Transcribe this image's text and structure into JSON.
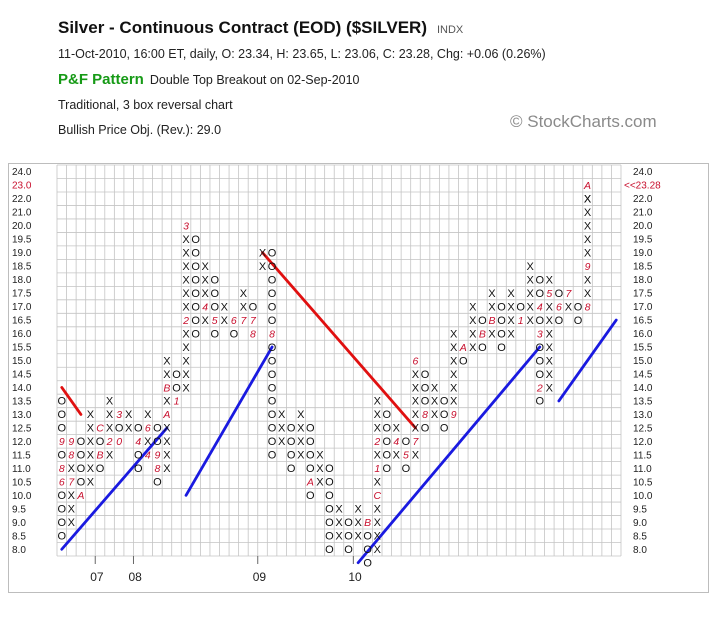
{
  "header": {
    "title": "Silver - Continuous Contract (EOD) ($SILVER)",
    "symbol_tag": "INDX",
    "quote_line": "11-Oct-2010, 16:00 ET, daily, O: 23.34, H: 23.65, L: 23.06, C: 23.28, Chg: +0.06 (0.26%)",
    "pattern_label": "P&F Pattern",
    "pattern_text": "Double Top Breakout on 02-Sep-2010",
    "method": "Traditional, 3 box reversal chart",
    "objective": "Bullish Price Obj. (Rev.): 29.0",
    "copyright": "© StockCharts.com"
  },
  "chart_data": {
    "type": "point-and-figure",
    "box_size": 0.5,
    "reversal": 3,
    "ylim": [
      8.0,
      24.0
    ],
    "y_ticks": [
      "24.0",
      "23.0",
      "22.0",
      "21.0",
      "20.0",
      "19.5",
      "19.0",
      "18.5",
      "18.0",
      "17.5",
      "17.0",
      "16.5",
      "16.0",
      "15.5",
      "15.0",
      "14.5",
      "14.0",
      "13.5",
      "13.0",
      "12.5",
      "12.0",
      "11.5",
      "11.0",
      "10.5",
      "10.0",
      "9.5",
      "9.0",
      "8.5",
      "8.0"
    ],
    "current_price_label": "23.0",
    "right_price_tag": "<<23.28",
    "x_labels": [
      {
        "column": 4,
        "label": "07"
      },
      {
        "column": 8,
        "label": "08"
      },
      {
        "column": 21,
        "label": "09"
      },
      {
        "column": 31,
        "label": "10"
      }
    ],
    "columns": [
      {
        "type": "O",
        "from": 14.5,
        "to": 9.5,
        "marks": {
          "11.5": "6",
          "12.0": "8",
          "13.0": "9"
        }
      },
      {
        "type": "X",
        "from": 10.0,
        "to": 13.0,
        "marks": {
          "11.5": "7",
          "12.5": "8",
          "13.0": "9"
        }
      },
      {
        "type": "O",
        "from": 13.0,
        "to": 11.0,
        "marks": {
          "11.0": "A"
        }
      },
      {
        "type": "X",
        "from": 11.5,
        "to": 14.0,
        "marks": {}
      },
      {
        "type": "O",
        "from": 13.5,
        "to": 12.0,
        "marks": {
          "13.5": "C",
          "12.5": "B"
        }
      },
      {
        "type": "X",
        "from": 12.5,
        "to": 14.5,
        "marks": {
          "13.0": "2"
        }
      },
      {
        "type": "O",
        "from": 14.0,
        "to": 13.0,
        "marks": {
          "13.0": "0",
          "14.0": "3"
        }
      },
      {
        "type": "X",
        "from": 13.5,
        "to": 14.0,
        "marks": {}
      },
      {
        "type": "O",
        "from": 13.5,
        "to": 12.0,
        "marks": {
          "13.0": "4"
        }
      },
      {
        "type": "X",
        "from": 12.5,
        "to": 14.0,
        "marks": {
          "12.5": "4",
          "13.5": "6"
        }
      },
      {
        "type": "O",
        "from": 13.5,
        "to": 11.5,
        "marks": {
          "12.0": "8",
          "12.5": "9"
        }
      },
      {
        "type": "X",
        "from": 12.0,
        "to": 16.0,
        "marks": {
          "14.0": "A",
          "15.0": "B"
        }
      },
      {
        "type": "O",
        "from": 15.5,
        "to": 14.5,
        "marks": {
          "14.5": "1"
        }
      },
      {
        "type": "X",
        "from": 15.0,
        "to": 21.0,
        "marks": {
          "17.5": "2",
          "21.0": "3"
        }
      },
      {
        "type": "O",
        "from": 20.5,
        "to": 17.0,
        "marks": {}
      },
      {
        "type": "X",
        "from": 17.5,
        "to": 19.5,
        "marks": {
          "18.0": "4"
        }
      },
      {
        "type": "O",
        "from": 19.0,
        "to": 17.0,
        "marks": {
          "17.5": "5"
        }
      },
      {
        "type": "X",
        "from": 17.5,
        "to": 18.0,
        "marks": {}
      },
      {
        "type": "O",
        "from": 17.5,
        "to": 17.0,
        "marks": {
          "17.5": "6"
        }
      },
      {
        "type": "X",
        "from": 17.5,
        "to": 18.5,
        "marks": {
          "17.5": "7"
        }
      },
      {
        "type": "O",
        "from": 18.0,
        "to": 17.0,
        "marks": {
          "17.5": "7",
          "17.0": "8"
        }
      },
      {
        "type": "X",
        "from": 19.5,
        "to": 20.0,
        "marks": {}
      },
      {
        "type": "O",
        "from": 20.0,
        "to": 12.5,
        "marks": {
          "17.0": "8"
        }
      },
      {
        "type": "X",
        "from": 13.0,
        "to": 14.0,
        "marks": {}
      },
      {
        "type": "O",
        "from": 13.5,
        "to": 12.0,
        "marks": {
          "14.0": "9"
        }
      },
      {
        "type": "X",
        "from": 12.5,
        "to": 14.0,
        "marks": {}
      },
      {
        "type": "O",
        "from": 13.5,
        "to": 11.0,
        "marks": {
          "11.5": "A"
        }
      },
      {
        "type": "X",
        "from": 11.5,
        "to": 12.5,
        "marks": {}
      },
      {
        "type": "O",
        "from": 12.0,
        "to": 9.0,
        "marks": {}
      },
      {
        "type": "X",
        "from": 9.5,
        "to": 10.5,
        "marks": {}
      },
      {
        "type": "O",
        "from": 10.0,
        "to": 9.0,
        "marks": {}
      },
      {
        "type": "X",
        "from": 9.5,
        "to": 10.5,
        "marks": {}
      },
      {
        "type": "O",
        "from": 10.0,
        "to": 8.5,
        "marks": {
          "10.0": "B"
        }
      },
      {
        "type": "X",
        "from": 9.0,
        "to": 14.5,
        "marks": {
          "11.0": "C",
          "12.0": "1",
          "13.0": "2"
        }
      },
      {
        "type": "O",
        "from": 14.0,
        "to": 12.0,
        "marks": {}
      },
      {
        "type": "X",
        "from": 12.5,
        "to": 13.5,
        "marks": {
          "13.0": "4"
        }
      },
      {
        "type": "O",
        "from": 13.0,
        "to": 12.0,
        "marks": {
          "12.5": "5"
        }
      },
      {
        "type": "X",
        "from": 12.5,
        "to": 16.0,
        "marks": {
          "13.0": "7",
          "16.0": "6"
        }
      },
      {
        "type": "O",
        "from": 15.5,
        "to": 13.5,
        "marks": {
          "14.0": "8"
        }
      },
      {
        "type": "X",
        "from": 14.0,
        "to": 15.0,
        "marks": {}
      },
      {
        "type": "O",
        "from": 14.5,
        "to": 13.5,
        "marks": {}
      },
      {
        "type": "X",
        "from": 14.0,
        "to": 17.0,
        "marks": {
          "14.0": "9"
        }
      },
      {
        "type": "O",
        "from": 16.5,
        "to": 16.0,
        "marks": {
          "16.5": "A"
        }
      },
      {
        "type": "X",
        "from": 16.5,
        "to": 18.0,
        "marks": {}
      },
      {
        "type": "O",
        "from": 17.5,
        "to": 16.5,
        "marks": {
          "17.0": "B"
        }
      },
      {
        "type": "X",
        "from": 17.0,
        "to": 18.5,
        "marks": {
          "17.5": "B"
        }
      },
      {
        "type": "O",
        "from": 18.0,
        "to": 16.5,
        "marks": {}
      },
      {
        "type": "X",
        "from": 17.0,
        "to": 18.5,
        "marks": {
          "19.0": "C"
        }
      },
      {
        "type": "O",
        "from": 18.0,
        "to": 17.5,
        "marks": {
          "17.5": "1"
        }
      },
      {
        "type": "X",
        "from": 17.5,
        "to": 19.5,
        "marks": {}
      },
      {
        "type": "O",
        "from": 19.0,
        "to": 14.5,
        "marks": {
          "15.0": "2",
          "17.0": "3",
          "18.0": "4"
        }
      },
      {
        "type": "X",
        "from": 15.0,
        "to": 19.0,
        "marks": {
          "18.5": "5"
        }
      },
      {
        "type": "O",
        "from": 18.5,
        "to": 17.5,
        "marks": {
          "18.0": "6"
        }
      },
      {
        "type": "X",
        "from": 18.0,
        "to": 18.5,
        "marks": {
          "18.5": "7"
        }
      },
      {
        "type": "O",
        "from": 18.0,
        "to": 17.5,
        "marks": {}
      },
      {
        "type": "X",
        "from": 18.0,
        "to": 23.0,
        "marks": {
          "18.0": "8",
          "19.5": "9",
          "23.0": "A"
        }
      }
    ],
    "trendlines": [
      {
        "kind": "resistance",
        "color": "#e01010",
        "from": {
          "col": 0,
          "price": 15.0
        },
        "to": {
          "col": 2,
          "price": 14.0
        }
      },
      {
        "kind": "support",
        "color": "#1a1ae0",
        "from": {
          "col": 0,
          "price": 9.0
        },
        "to": {
          "col": 11,
          "price": 13.5
        }
      },
      {
        "kind": "support",
        "color": "#1a1ae0",
        "from": {
          "col": 13,
          "price": 11.0
        },
        "to": {
          "col": 22,
          "price": 16.5
        }
      },
      {
        "kind": "resistance",
        "color": "#e01010",
        "from": {
          "col": 21,
          "price": 20.0
        },
        "to": {
          "col": 37,
          "price": 13.5
        }
      },
      {
        "kind": "support",
        "color": "#1a1ae0",
        "from": {
          "col": 31,
          "price": 8.5
        },
        "to": {
          "col": 50,
          "price": 16.5
        }
      },
      {
        "kind": "support",
        "color": "#1a1ae0",
        "from": {
          "col": 52,
          "price": 14.5
        },
        "to": {
          "col": 58,
          "price": 17.5
        }
      }
    ],
    "colors": {
      "x_mark": "#111111",
      "o_mark": "#111111",
      "month_mark": "#c8102e",
      "grid": "#c4c4c4",
      "price_red": "#c8102e"
    }
  }
}
